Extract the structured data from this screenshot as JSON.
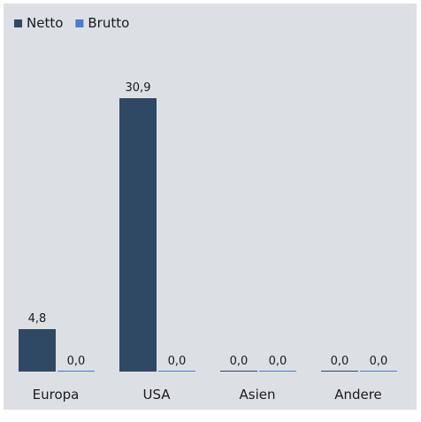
{
  "chart_data": {
    "type": "bar",
    "title": "",
    "xlabel": "",
    "ylabel": "",
    "categories": [
      "Europa",
      "USA",
      "Asien",
      "Andere"
    ],
    "series": [
      {
        "name": "Netto",
        "color": "#2f4864",
        "values": [
          4.8,
          30.9,
          0.0,
          0.0
        ],
        "labels": [
          "4,8",
          "30,9",
          "0,0",
          "0,0"
        ]
      },
      {
        "name": "Brutto",
        "color": "#4a7bd0",
        "values": [
          0.0,
          0.0,
          0.0,
          0.0
        ],
        "labels": [
          "0,0",
          "0,0",
          "0,0",
          "0,0"
        ]
      }
    ],
    "ylim": [
      0,
      30.9
    ],
    "grid": false,
    "legend_position": "top-left",
    "panel_color": "#dce0e4"
  }
}
